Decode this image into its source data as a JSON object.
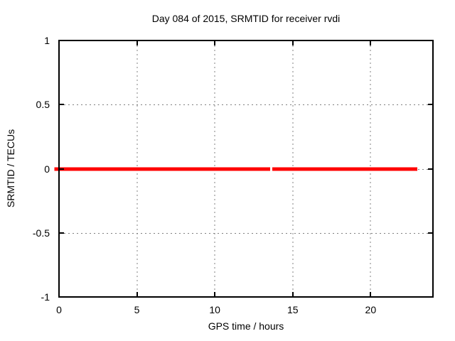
{
  "chart_data": {
    "type": "line",
    "title": "Day 084 of 2015, SRMTID for receiver rvdi",
    "xlabel": "GPS time / hours",
    "ylabel": "SRMTID / TECUs",
    "xlim": [
      0,
      24
    ],
    "ylim": [
      -1,
      1
    ],
    "xticks": [
      0,
      5,
      10,
      15,
      20
    ],
    "yticks": [
      1,
      0.5,
      0,
      -0.5,
      -1
    ],
    "grid": true,
    "grid_color": "#808080",
    "border_color": "#000000",
    "background_color": "#ffffff",
    "legend": "none",
    "series": [
      {
        "name": "SRMTID",
        "color": "#ff0000",
        "linewidth": 5,
        "segments": [
          {
            "x_start": -0.3,
            "x_end": 13.56,
            "y": 0
          },
          {
            "x_start": 13.68,
            "x_end": 23.0,
            "y": 0
          }
        ]
      }
    ]
  }
}
